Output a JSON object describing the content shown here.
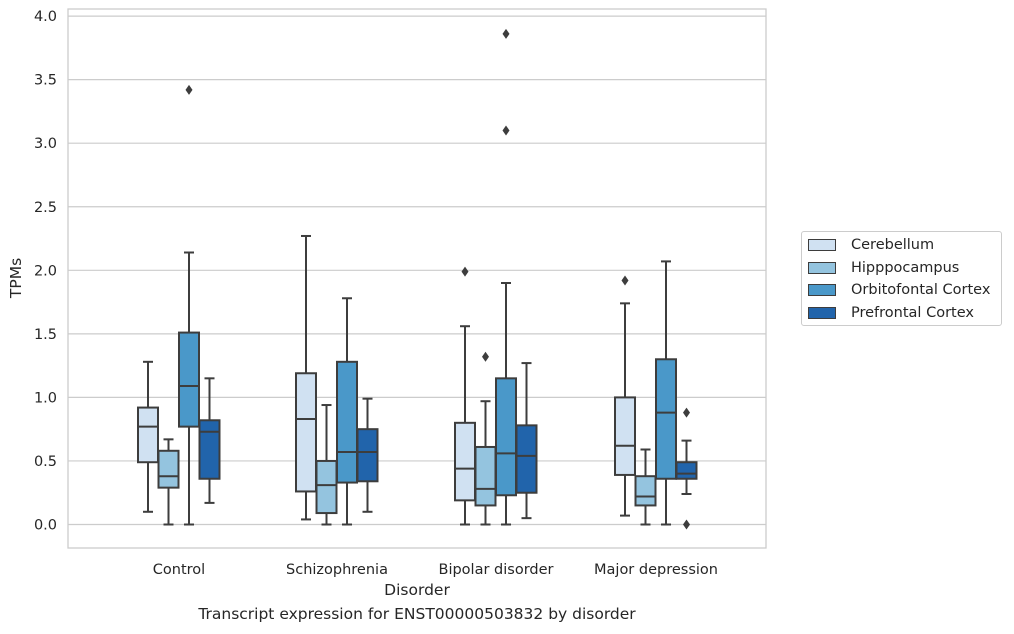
{
  "chart_data": {
    "type": "boxplot",
    "xlabel": "Disorder",
    "ylabel": "TPMs",
    "caption": "Transcript expression for ENST00000503832 by disorder",
    "ylim": [
      -0.18,
      4.05
    ],
    "yticks": [
      "0.0",
      "0.5",
      "1.0",
      "1.5",
      "2.0",
      "2.5",
      "3.0",
      "3.5",
      "4.0"
    ],
    "grid": "horizontal",
    "legend_position": "right",
    "categories": [
      "Control",
      "Schizophrenia",
      "Bipolar disorder",
      "Major depression"
    ],
    "series": [
      {
        "name": "Cerebellum",
        "color": "#d0e1f2",
        "boxes": [
          {
            "whisker_low": 0.1,
            "q1": 0.49,
            "median": 0.77,
            "q3": 0.92,
            "whisker_high": 1.28,
            "outliers": []
          },
          {
            "whisker_low": 0.04,
            "q1": 0.26,
            "median": 0.83,
            "q3": 1.19,
            "whisker_high": 2.27,
            "outliers": []
          },
          {
            "whisker_low": 0.0,
            "q1": 0.19,
            "median": 0.44,
            "q3": 0.8,
            "whisker_high": 1.56,
            "outliers": [
              1.99
            ]
          },
          {
            "whisker_low": 0.07,
            "q1": 0.39,
            "median": 0.62,
            "q3": 1.0,
            "whisker_high": 1.74,
            "outliers": [
              1.92
            ]
          }
        ]
      },
      {
        "name": "Hipppocampus",
        "color": "#94c4df",
        "boxes": [
          {
            "whisker_low": 0.0,
            "q1": 0.29,
            "median": 0.38,
            "q3": 0.58,
            "whisker_high": 0.67,
            "outliers": []
          },
          {
            "whisker_low": 0.0,
            "q1": 0.09,
            "median": 0.31,
            "q3": 0.5,
            "whisker_high": 0.94,
            "outliers": []
          },
          {
            "whisker_low": 0.0,
            "q1": 0.15,
            "median": 0.28,
            "q3": 0.61,
            "whisker_high": 0.97,
            "outliers": [
              1.32
            ]
          },
          {
            "whisker_low": 0.0,
            "q1": 0.15,
            "median": 0.22,
            "q3": 0.38,
            "whisker_high": 0.59,
            "outliers": []
          }
        ]
      },
      {
        "name": "Orbitofontal Cortex",
        "color": "#4a98c9",
        "boxes": [
          {
            "whisker_low": 0.0,
            "q1": 0.77,
            "median": 1.09,
            "q3": 1.51,
            "whisker_high": 2.14,
            "outliers": [
              3.42
            ]
          },
          {
            "whisker_low": 0.0,
            "q1": 0.33,
            "median": 0.57,
            "q3": 1.28,
            "whisker_high": 1.78,
            "outliers": []
          },
          {
            "whisker_low": 0.0,
            "q1": 0.23,
            "median": 0.56,
            "q3": 1.15,
            "whisker_high": 1.9,
            "outliers": [
              3.1,
              3.86
            ]
          },
          {
            "whisker_low": 0.0,
            "q1": 0.36,
            "median": 0.88,
            "q3": 1.3,
            "whisker_high": 2.07,
            "outliers": []
          }
        ]
      },
      {
        "name": "Prefrontal Cortex",
        "color": "#2164ab",
        "boxes": [
          {
            "whisker_low": 0.17,
            "q1": 0.36,
            "median": 0.73,
            "q3": 0.82,
            "whisker_high": 1.15,
            "outliers": []
          },
          {
            "whisker_low": 0.1,
            "q1": 0.34,
            "median": 0.57,
            "q3": 0.75,
            "whisker_high": 0.99,
            "outliers": []
          },
          {
            "whisker_low": 0.05,
            "q1": 0.25,
            "median": 0.54,
            "q3": 0.78,
            "whisker_high": 1.27,
            "outliers": []
          },
          {
            "whisker_low": 0.24,
            "q1": 0.36,
            "median": 0.4,
            "q3": 0.49,
            "whisker_high": 0.66,
            "outliers": [
              0.88,
              0.0
            ]
          }
        ]
      }
    ]
  }
}
